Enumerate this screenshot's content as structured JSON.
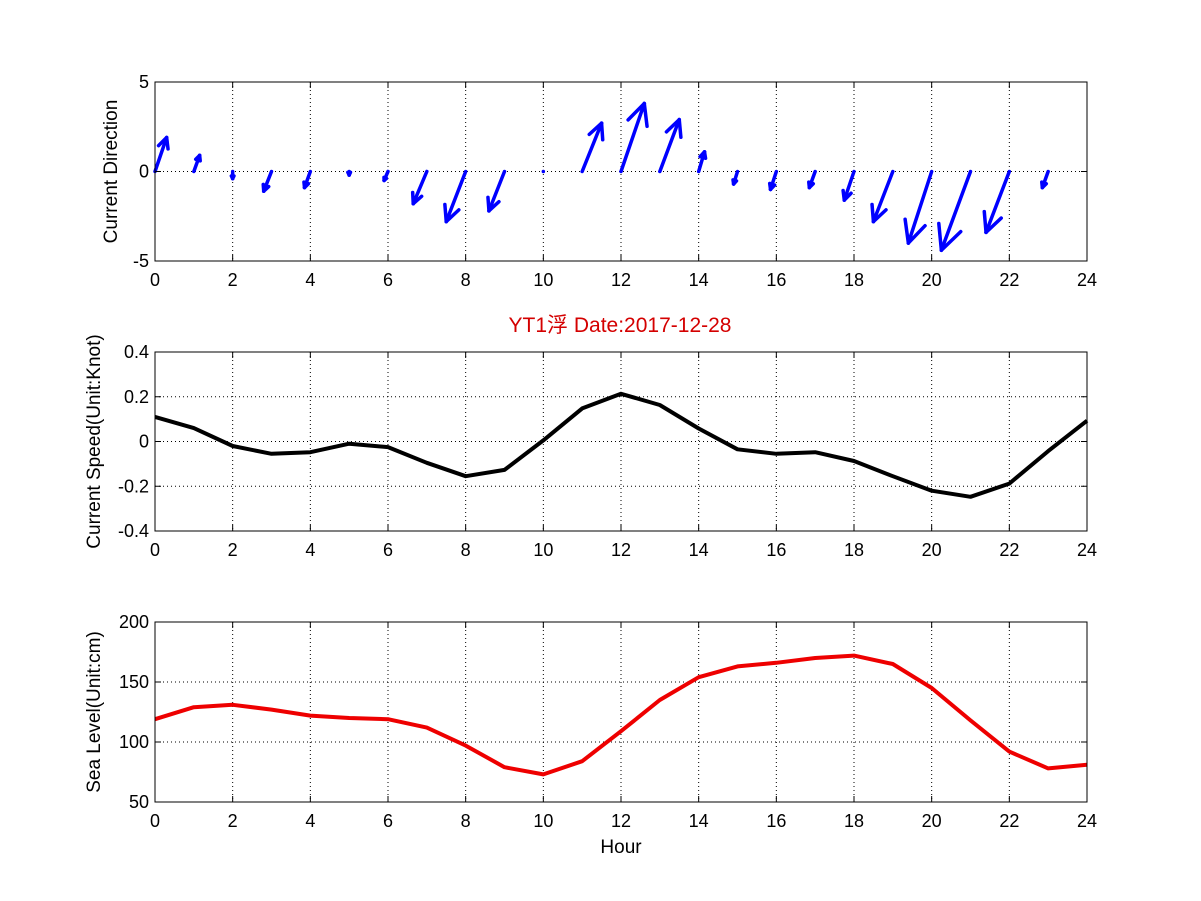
{
  "figure": {
    "title": "YT1浮    Date:2017-12-28",
    "title_color": "#d40000"
  },
  "chart_data": [
    {
      "type": "quiver",
      "ylabel": "Current Direction",
      "xlabel": "",
      "xlim": [
        0,
        24
      ],
      "ylim": [
        -5,
        5
      ],
      "xticks": [
        0,
        2,
        4,
        6,
        8,
        10,
        12,
        14,
        16,
        18,
        20,
        22,
        24
      ],
      "yticks": [
        -5,
        0,
        5
      ],
      "grid": true,
      "color": "#0000ff",
      "origins_x": [
        0,
        1,
        2,
        3,
        4,
        5,
        6,
        7,
        8,
        9,
        10,
        11,
        12,
        13,
        14,
        15,
        16,
        17,
        18,
        19,
        20,
        21,
        22,
        23
      ],
      "u": [
        0.3,
        0.15,
        0.0,
        -0.2,
        -0.15,
        0.0,
        -0.1,
        -0.35,
        -0.5,
        -0.4,
        0.0,
        0.5,
        0.6,
        0.5,
        0.15,
        -0.1,
        -0.15,
        -0.15,
        -0.25,
        -0.5,
        -0.6,
        -0.75,
        -0.6,
        -0.15
      ],
      "v": [
        1.9,
        0.9,
        -0.4,
        -1.1,
        -0.9,
        -0.2,
        -0.5,
        -1.8,
        -2.8,
        -2.2,
        0.0,
        2.7,
        3.8,
        2.9,
        1.1,
        -0.7,
        -1.0,
        -0.9,
        -1.6,
        -2.8,
        -4.0,
        -4.4,
        -3.4,
        -0.9
      ]
    },
    {
      "type": "line",
      "ylabel": "Current Speed(Unit:Knot)",
      "xlabel": "",
      "xlim": [
        0,
        24
      ],
      "ylim": [
        -0.4,
        0.4
      ],
      "xticks": [
        0,
        2,
        4,
        6,
        8,
        10,
        12,
        14,
        16,
        18,
        20,
        22,
        24
      ],
      "yticks": [
        -0.4,
        -0.2,
        0,
        0.2,
        0.4
      ],
      "ytick_labels": [
        "-0.4",
        "-0.2",
        "0",
        "0.2",
        "0.4"
      ],
      "grid": true,
      "color": "#000000",
      "x": [
        0,
        1,
        2,
        3,
        4,
        5,
        6,
        7,
        8,
        9,
        10,
        11,
        12,
        13,
        14,
        15,
        16,
        17,
        18,
        19,
        20,
        21,
        22,
        23,
        24
      ],
      "y": [
        0.11,
        0.06,
        -0.02,
        -0.055,
        -0.048,
        -0.01,
        -0.025,
        -0.095,
        -0.155,
        -0.127,
        0.005,
        0.148,
        0.213,
        0.163,
        0.058,
        -0.035,
        -0.055,
        -0.048,
        -0.087,
        -0.155,
        -0.22,
        -0.247,
        -0.188,
        -0.043,
        0.093
      ]
    },
    {
      "type": "line",
      "ylabel": "Sea Level(Unit:cm)",
      "xlabel": "Hour",
      "xlim": [
        0,
        24
      ],
      "ylim": [
        50,
        200
      ],
      "xticks": [
        0,
        2,
        4,
        6,
        8,
        10,
        12,
        14,
        16,
        18,
        20,
        22,
        24
      ],
      "yticks": [
        50,
        100,
        150,
        200
      ],
      "grid": true,
      "color": "#ee0000",
      "x": [
        0,
        1,
        2,
        3,
        4,
        5,
        6,
        7,
        8,
        9,
        10,
        11,
        12,
        13,
        14,
        15,
        16,
        17,
        18,
        19,
        20,
        21,
        22,
        23,
        24
      ],
      "y": [
        119,
        129,
        131,
        127,
        122,
        120,
        119,
        112,
        97,
        79,
        73,
        84,
        109,
        135,
        154,
        163,
        166,
        170,
        172,
        165,
        145,
        118,
        92,
        78,
        81
      ]
    }
  ]
}
